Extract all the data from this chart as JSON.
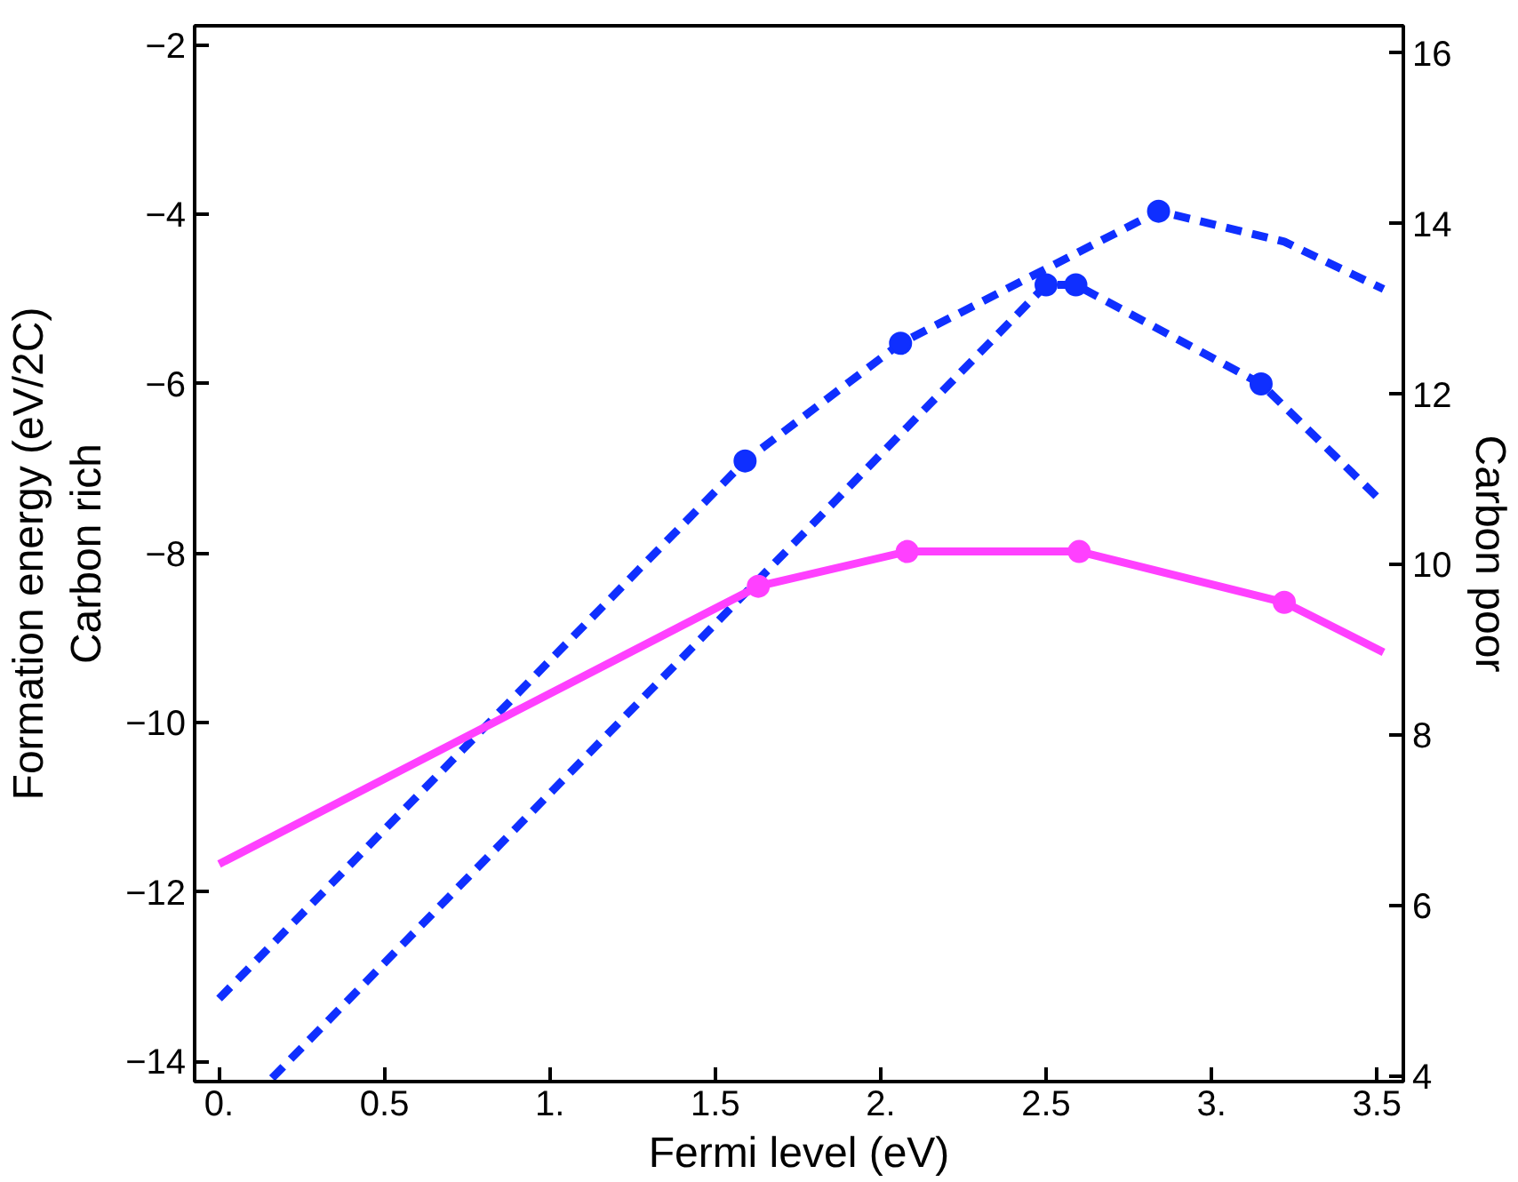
{
  "chart_data": {
    "type": "line",
    "xlabel": "Fermi level (eV)",
    "ylabel": "Formation energy (eV/2C)\nCarbon rich",
    "y2label": "Carbon poor",
    "xlim": [
      -0.074,
      3.58
    ],
    "ylim": [
      -14.24,
      -1.77
    ],
    "y2lim": [
      3.94,
      16.32
    ],
    "xticks": [
      {
        "value": 0,
        "label": "0."
      },
      0.5,
      {
        "value": 1,
        "label": "1."
      },
      1.5,
      {
        "value": 2,
        "label": "2."
      },
      2.5,
      {
        "value": 3,
        "label": "3."
      },
      3.5
    ],
    "yticks": [
      {
        "value": -14,
        "label": "−14"
      },
      {
        "value": -12,
        "label": "−12"
      },
      {
        "value": -10,
        "label": "−10"
      },
      {
        "value": -8,
        "label": "−8"
      },
      {
        "value": -6,
        "label": "−6"
      },
      {
        "value": -4,
        "label": "−4"
      },
      {
        "value": -2,
        "label": "−2"
      }
    ],
    "y2ticks": [
      4,
      6,
      8,
      10,
      12,
      14,
      16
    ],
    "grid": false,
    "series": [
      {
        "color": "#0f2fff",
        "line_style": "dashed",
        "x": [
          0,
          1.59,
          2.06,
          2.84,
          3.22,
          3.52
        ],
        "values": [
          -13.26,
          -6.91,
          -5.52,
          -3.96,
          -4.32,
          -4.88
        ]
      },
      {
        "color": "#0f2fff",
        "line_style": "dashed",
        "x": [
          0.16,
          2.5,
          2.59,
          3.15,
          3.52
        ],
        "values": [
          -14.2,
          -4.83,
          -4.83,
          -6.0,
          -7.41
        ]
      },
      {
        "color": "#ff40ff",
        "line_style": "solid",
        "x": [
          0,
          1.63,
          2.08,
          2.6,
          3.22,
          3.52
        ],
        "values": [
          -11.67,
          -8.39,
          -7.98,
          -7.98,
          -8.58,
          -9.17
        ]
      },
      {
        "type": "scatter",
        "color": "#0f2fff",
        "marker": "circle",
        "x": [
          1.59,
          2.06,
          2.84,
          2.5,
          2.59,
          3.15
        ],
        "values": [
          -6.91,
          -5.52,
          -3.96,
          -4.83,
          -4.83,
          -6.0
        ]
      },
      {
        "type": "scatter",
        "color": "#ff40ff",
        "marker": "circle",
        "x": [
          1.63,
          2.08,
          2.6,
          3.22
        ],
        "values": [
          -8.39,
          -7.98,
          -7.98,
          -8.58
        ]
      }
    ]
  }
}
